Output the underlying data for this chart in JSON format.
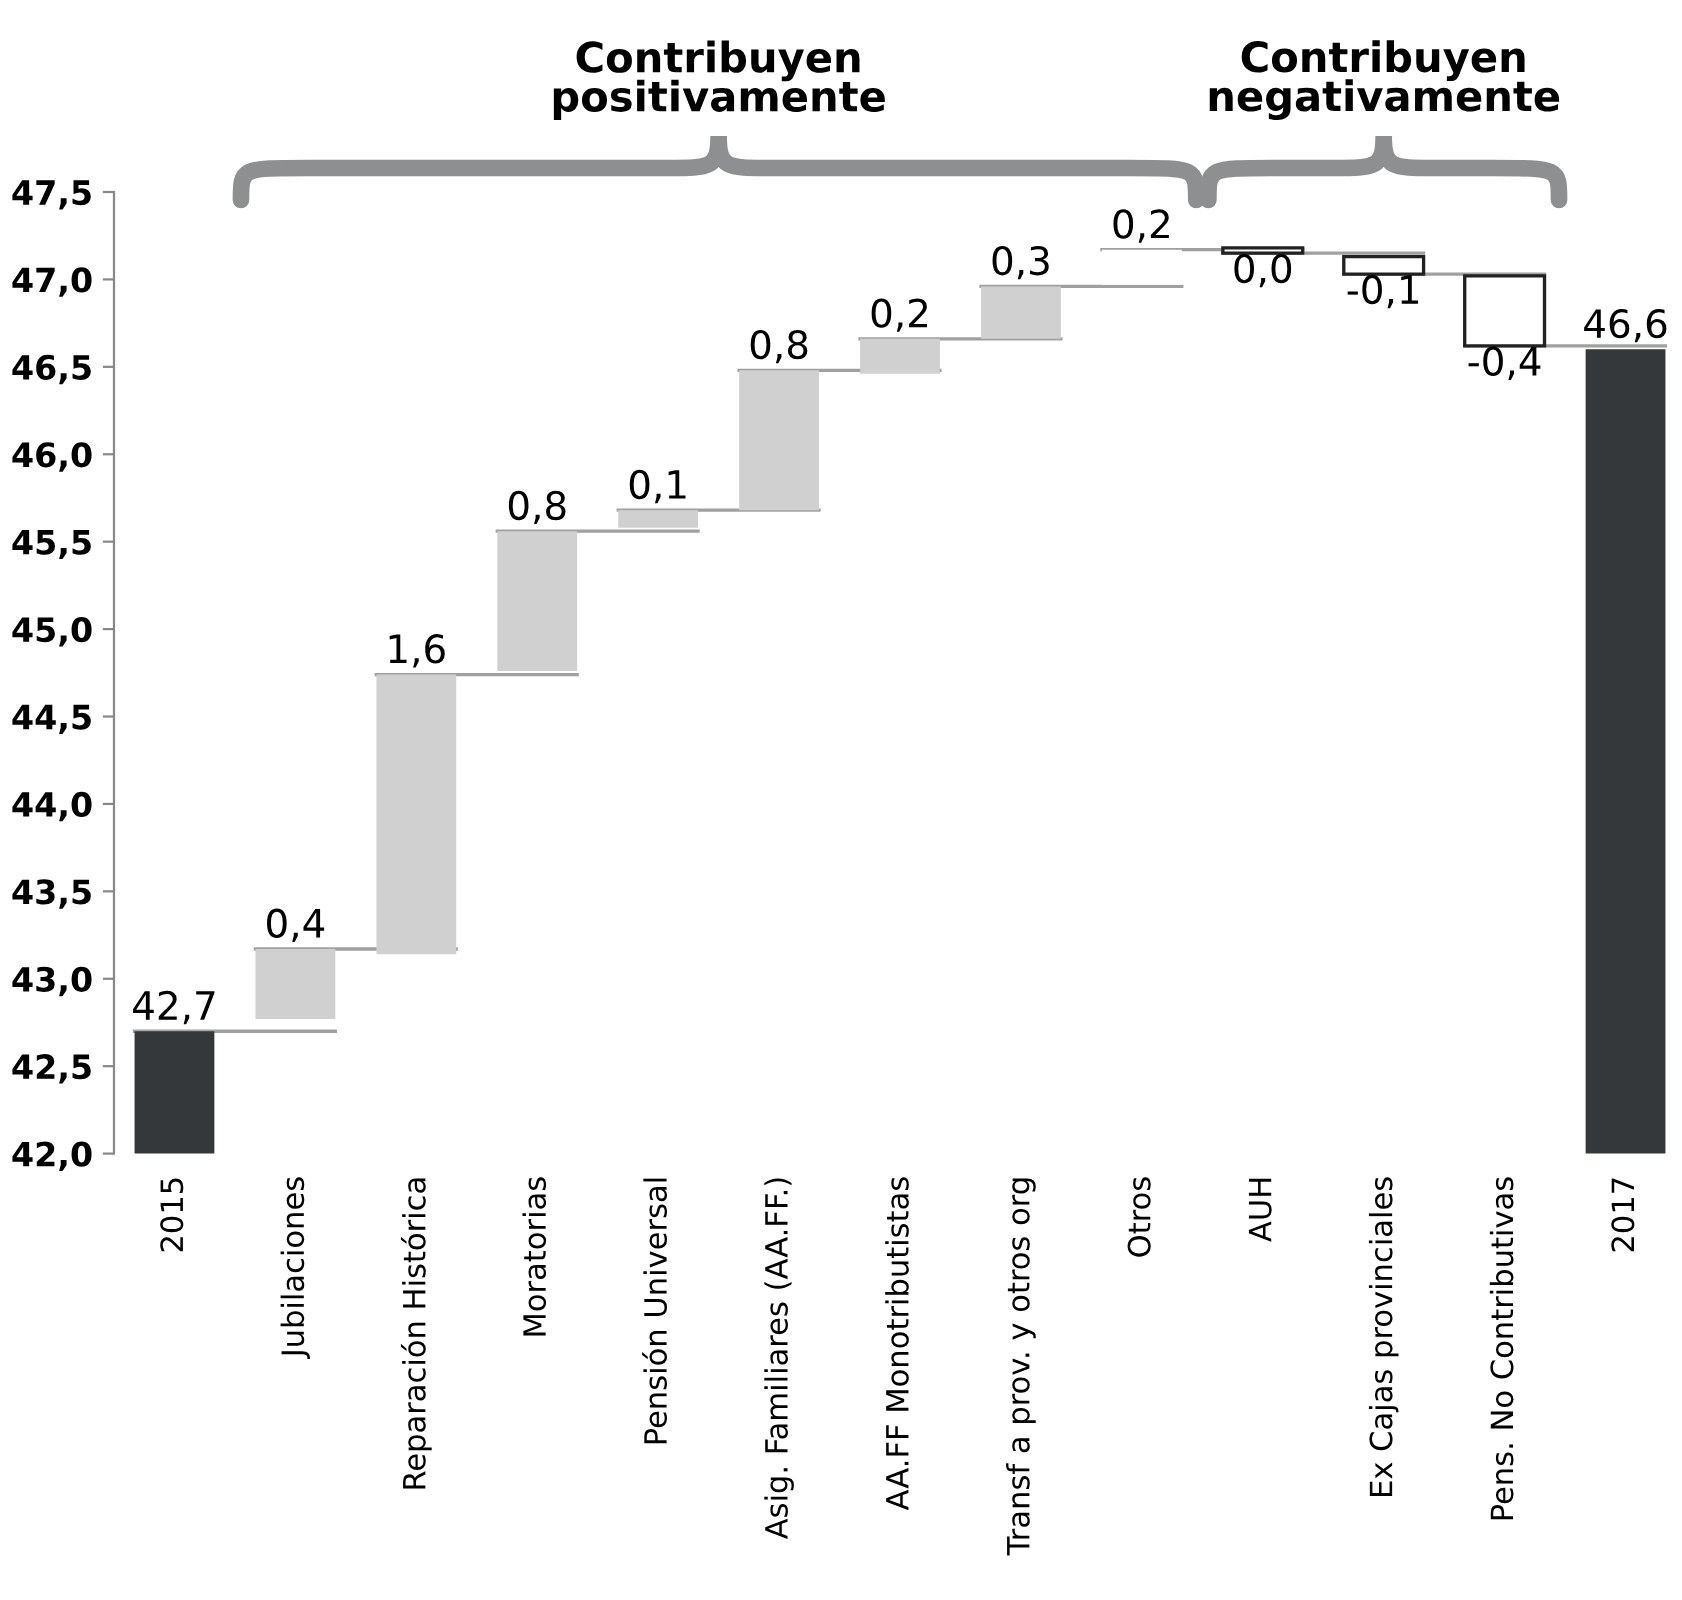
{
  "chart_data": {
    "type": "bar",
    "categories": [
      "2015",
      "Jubilaciones",
      "Reparación Histórica",
      "Moratorias",
      "Pensión Universal",
      "Asig. Familiares (AA.FF.)",
      "AA.FF Monotributistas",
      "Transf a prov. y otros org",
      "Otros",
      "AUH",
      "Ex Cajas provinciales",
      "Pens. No Contributivas",
      "2017"
    ],
    "values": [
      42.7,
      0.4,
      1.6,
      0.8,
      0.1,
      0.8,
      0.2,
      0.3,
      0.2,
      -0.03,
      -0.1,
      -0.4,
      46.6
    ],
    "base": [
      0,
      42.77,
      43.14,
      44.76,
      45.58,
      45.68,
      46.46,
      46.66,
      46.97,
      47.18,
      47.13,
      47.02,
      0
    ],
    "colors": [
      "#35383b",
      "#cfd0cf",
      "#cfd0cf",
      "#cfd0cf",
      "#cfd0cf",
      "#cfd0cf",
      "#cfd0cf",
      "#cfd0cf",
      "#ffffff",
      "#ffffff",
      "#ffffff",
      "#ffffff",
      "#35383b"
    ],
    "value_labels": [
      "42,7",
      "0,4",
      "1,6",
      "0,8",
      "0,1",
      "0,8",
      "0,2",
      "0,3",
      "0,2",
      "0,0",
      "-0,1",
      "-0,4",
      "46,6"
    ],
    "ylim": [
      42.0,
      47.5
    ],
    "yticks": [
      {
        "value": 42.0,
        "label": "42,0"
      },
      {
        "value": 42.5,
        "label": "42,5"
      },
      {
        "value": 43.0,
        "label": "43,0"
      },
      {
        "value": 43.5,
        "label": "43,5"
      },
      {
        "value": 44.0,
        "label": "44,0"
      },
      {
        "value": 44.5,
        "label": "44,5"
      },
      {
        "value": 45.0,
        "label": "45,0"
      },
      {
        "value": 45.5,
        "label": "45,5"
      },
      {
        "value": 46.0,
        "label": "46,0"
      },
      {
        "value": 46.5,
        "label": "46,5"
      },
      {
        "value": 47.0,
        "label": "47,0"
      },
      {
        "value": 47.5,
        "label": "47,5"
      }
    ],
    "annotations": [
      "Contribuyen\npositivamente",
      "Contribuyen\nnegativamente"
    ],
    "grid": false,
    "legend": false
  }
}
